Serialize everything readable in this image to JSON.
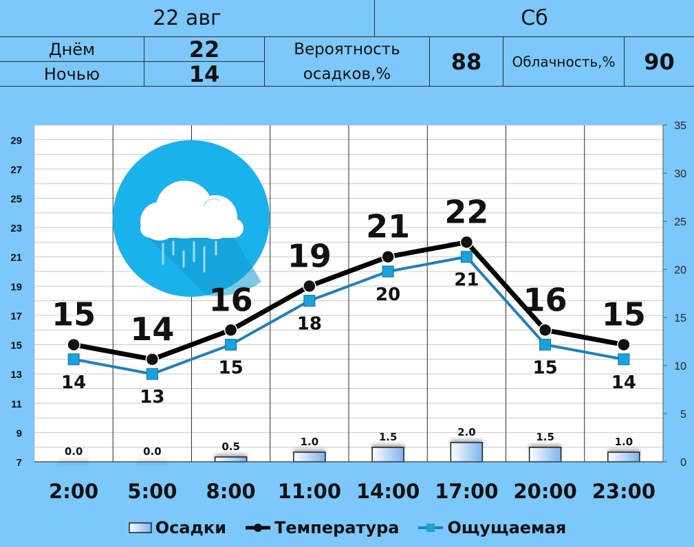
{
  "header": {
    "date": "22 авг",
    "weekday": "Сб",
    "day_label": "Днём",
    "day_value": "22",
    "night_label": "Ночью",
    "night_value": "14",
    "precip_prob_label_line1": "Вероятность",
    "precip_prob_label_line2": "осадков,%",
    "precip_prob_value": "88",
    "cloud_label": "Облачность,%",
    "cloud_value": "90"
  },
  "weather_icon": "rain-cloud-icon",
  "colors": {
    "background": "#7cc8fb",
    "temperature_line": "#000000",
    "feels_line": "#1f7fbf",
    "feels_marker": "#1aa3d8",
    "icon_circle": "#1ab2ec",
    "bar_fill": "#cfe6ff"
  },
  "chart_data": {
    "type": "line",
    "categories": [
      "2:00",
      "5:00",
      "8:00",
      "11:00",
      "14:00",
      "17:00",
      "20:00",
      "23:00"
    ],
    "series": [
      {
        "name": "Осадки",
        "type": "bar",
        "axis": "right",
        "values": [
          0.0,
          0.0,
          0.5,
          1.0,
          1.5,
          2.0,
          1.5,
          1.0
        ],
        "labels": [
          "0.0",
          "0.0",
          "0.5",
          "1.0",
          "1.5",
          "2.0",
          "1.5",
          "1.0"
        ]
      },
      {
        "name": "Температура",
        "type": "line",
        "axis": "left",
        "values": [
          15,
          14,
          16,
          19,
          21,
          22,
          16,
          15
        ],
        "labels": [
          "15",
          "14",
          "16",
          "19",
          "21",
          "22",
          "16",
          "15"
        ]
      },
      {
        "name": "Ощущаемая",
        "type": "line",
        "axis": "left",
        "values": [
          14,
          13,
          15,
          18,
          20,
          21,
          15,
          14
        ],
        "labels": [
          "14",
          "13",
          "15",
          "18",
          "20",
          "21",
          "15",
          "14"
        ]
      }
    ],
    "y_left": {
      "min": 7,
      "max": 30,
      "ticks": [
        "7",
        "9",
        "11",
        "13",
        "15",
        "17",
        "19",
        "21",
        "23",
        "25",
        "27",
        "29"
      ]
    },
    "y_right": {
      "min": 0,
      "max": 35,
      "ticks": [
        "0",
        "5",
        "10",
        "15",
        "20",
        "25",
        "30",
        "35"
      ]
    },
    "grid": true,
    "legend": "bottom"
  }
}
